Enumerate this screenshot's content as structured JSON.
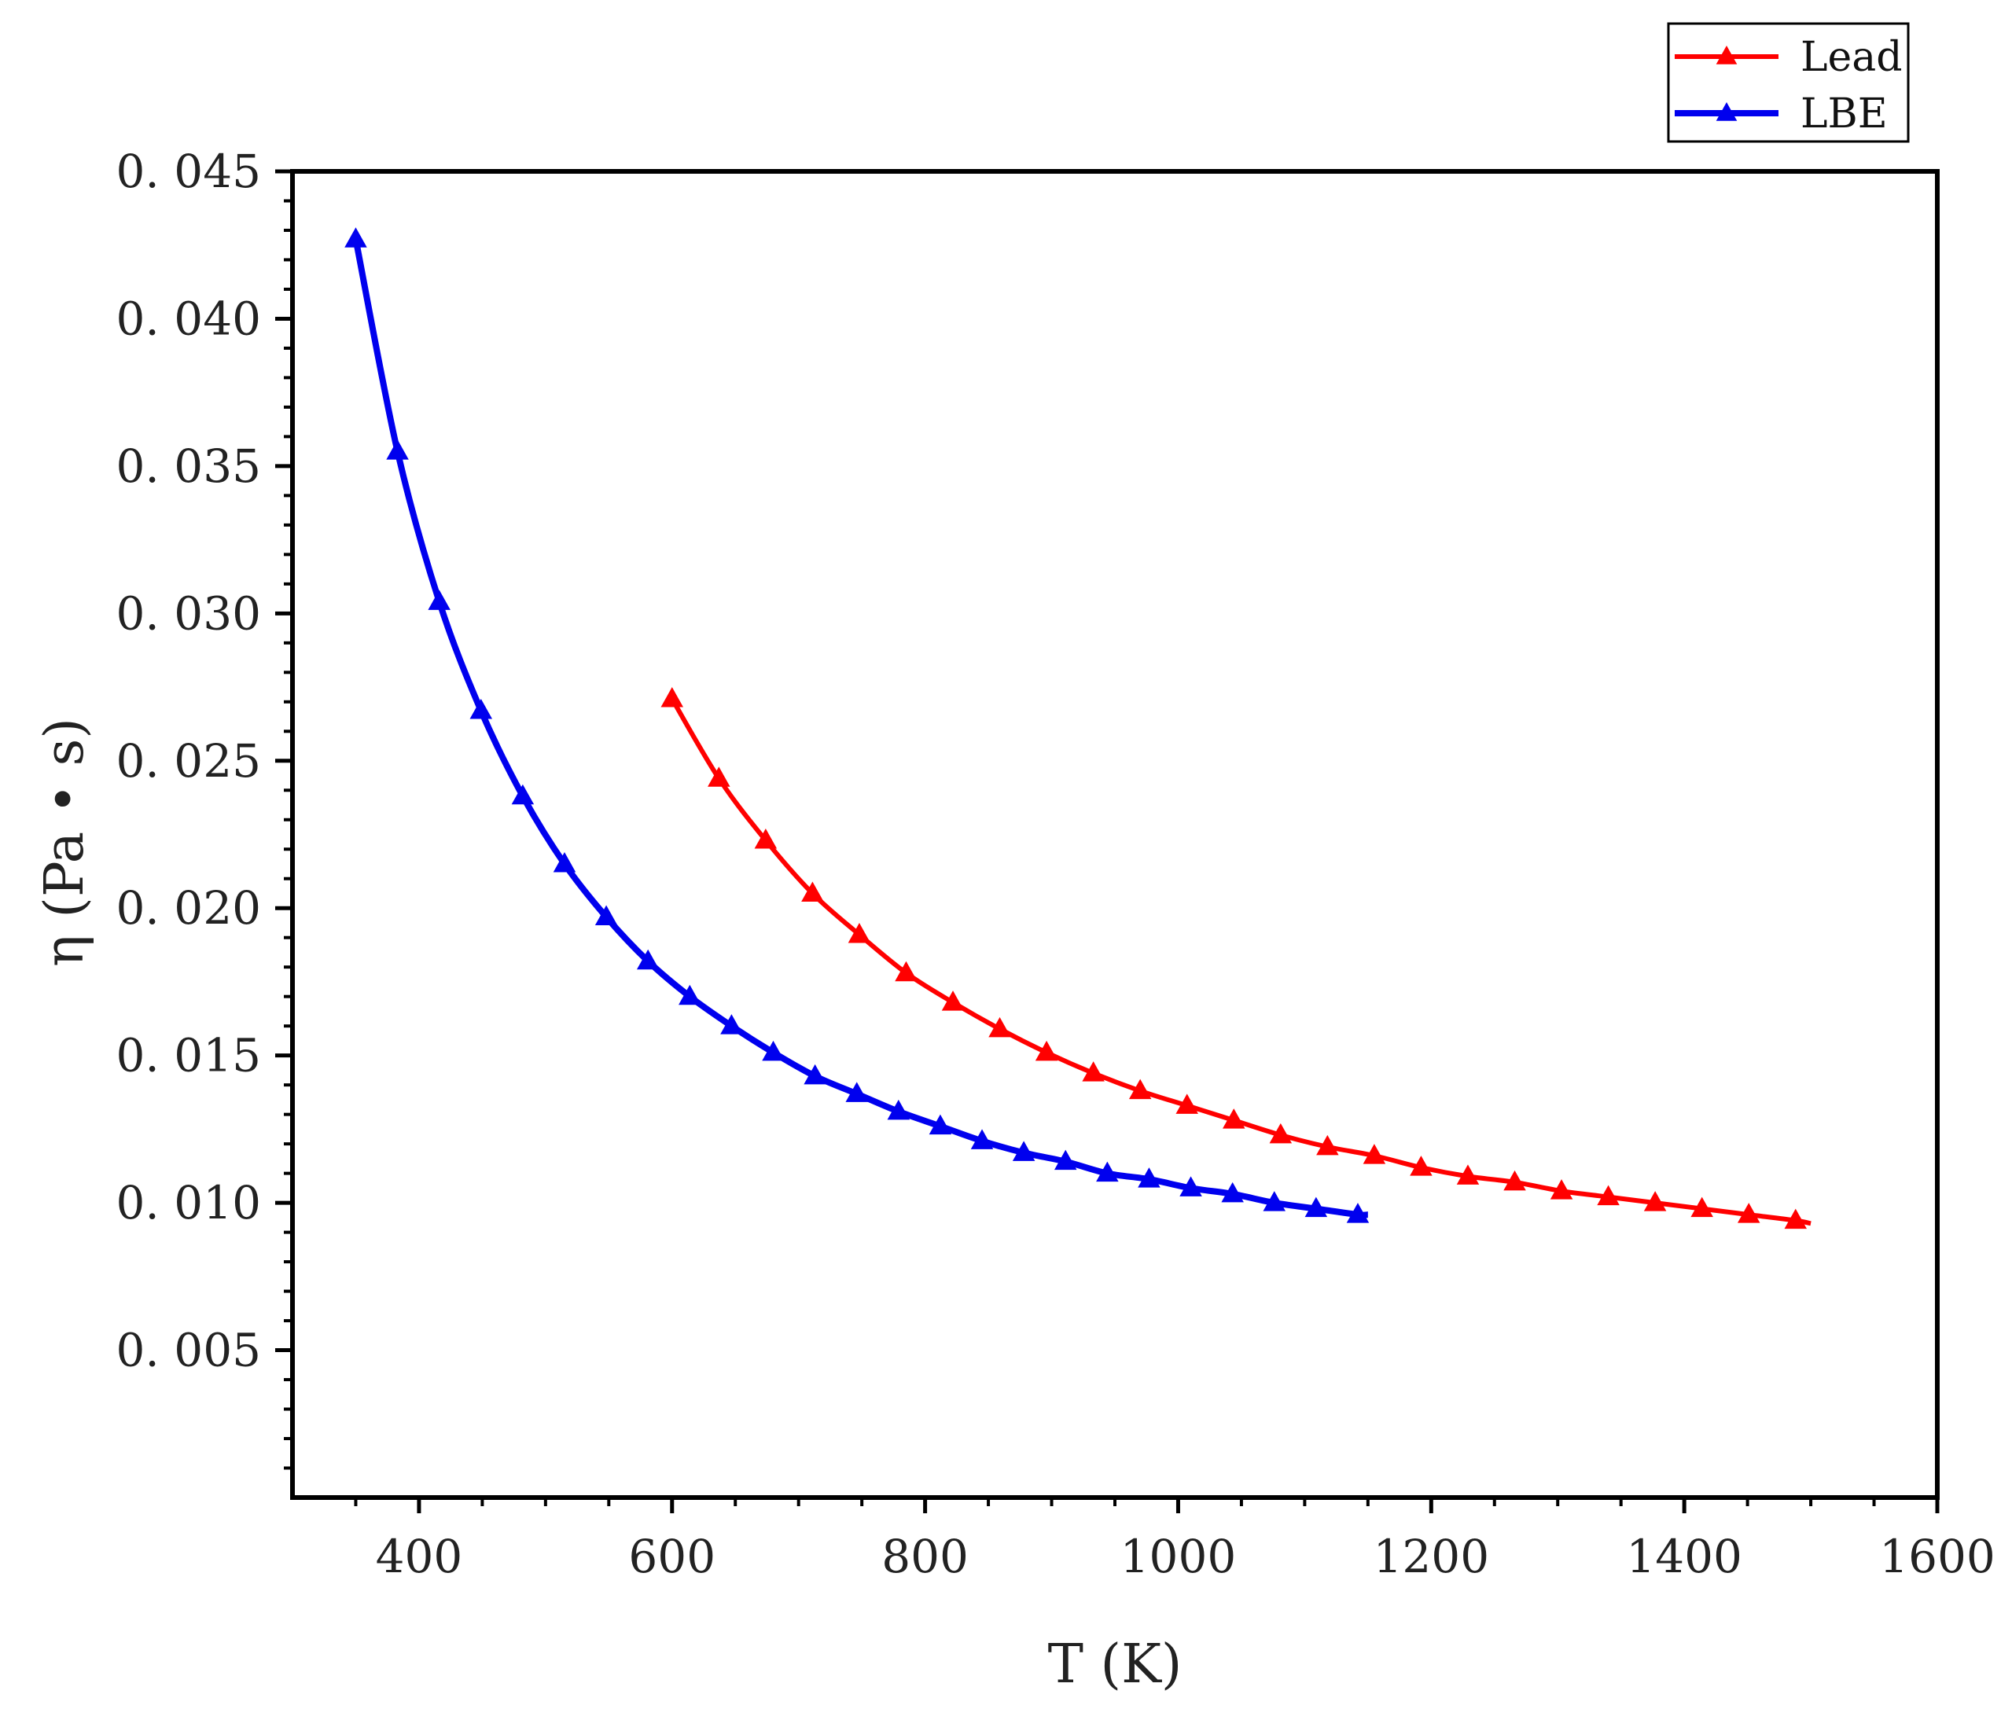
{
  "chart_data": {
    "type": "line",
    "xlabel": "T (K)",
    "ylabel": "η (Pa • s)",
    "xlim": [
      300,
      1600
    ],
    "ylim": [
      0.0,
      0.045
    ],
    "x_ticks": [
      400,
      600,
      800,
      1000,
      1200,
      1400,
      1600
    ],
    "x_tick_labels": [
      "400",
      "600",
      "800",
      "1000",
      "1200",
      "1400",
      "1600"
    ],
    "y_ticks": [
      0.005,
      0.01,
      0.015,
      0.02,
      0.025,
      0.03,
      0.035,
      0.04,
      0.045
    ],
    "y_tick_labels": [
      "0. 005",
      "0. 010",
      "0. 015",
      "0. 020",
      "0. 025",
      "0. 030",
      "0. 035",
      "0. 040",
      "0. 045"
    ],
    "grid": false,
    "legend_position": "top-right, outside plot",
    "series": [
      {
        "name": "Lead",
        "color": "#ff0000",
        "marker": "triangle",
        "x": [
          600,
          637,
          674,
          711,
          748,
          785,
          822,
          859,
          896,
          933,
          970,
          1007,
          1044,
          1081,
          1118,
          1155,
          1192,
          1229,
          1266,
          1303,
          1340,
          1377,
          1414,
          1451,
          1488
        ],
        "y": [
          0.0271,
          0.0244,
          0.0223,
          0.0205,
          0.0191,
          0.0178,
          0.0168,
          0.0159,
          0.0151,
          0.0144,
          0.0138,
          0.0133,
          0.0128,
          0.0123,
          0.0119,
          0.0116,
          0.0112,
          0.0109,
          0.0107,
          0.0104,
          0.0102,
          0.01,
          0.0098,
          0.0096,
          0.0094
        ],
        "line_end": [
          1500,
          0.0093
        ]
      },
      {
        "name": "LBE",
        "color": "#0000ee",
        "marker": "triangle",
        "x": [
          350,
          383,
          416,
          449,
          482,
          515,
          548,
          581,
          614,
          647,
          680,
          713,
          746,
          779,
          812,
          845,
          878,
          911,
          944,
          977,
          1010,
          1043,
          1076,
          1109,
          1142
        ],
        "y": [
          0.0427,
          0.0355,
          0.0304,
          0.0267,
          0.0238,
          0.0215,
          0.0197,
          0.0182,
          0.017,
          0.016,
          0.0151,
          0.0143,
          0.0137,
          0.0131,
          0.0126,
          0.0121,
          0.0117,
          0.0114,
          0.011,
          0.0108,
          0.0105,
          0.0103,
          0.01,
          0.0098,
          0.0096
        ],
        "line_end": [
          1150,
          0.0096
        ]
      }
    ]
  }
}
